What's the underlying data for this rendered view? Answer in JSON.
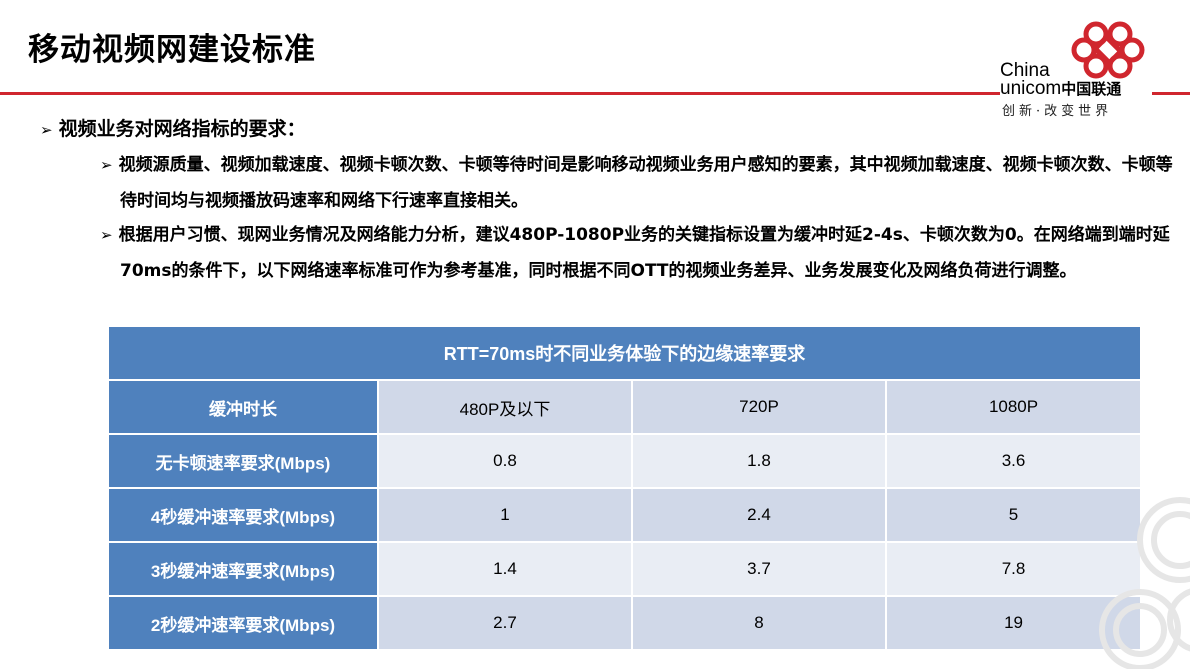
{
  "title": "移动视频网建设标准",
  "logo": {
    "line1": "China",
    "line2_en": "unicom",
    "line2_cn": "中国联通",
    "slogan": "创新·改变世界"
  },
  "section": {
    "heading": "视频业务对网络指标的要求：",
    "bullets": [
      "视频源质量、视频加载速度、视频卡顿次数、卡顿等待时间是影响移动视频业务用户感知的要素，其中视频加载速度、视频卡顿次数、卡顿等待时间均与视频播放码速率和网络下行速率直接相关。",
      "根据用户习惯、现网业务情况及网络能力分析，建议480P-1080P业务的关键指标设置为缓冲时延2-4s、卡顿次数为0。在网络端到端时延70ms的条件下，以下网络速率标准可作为参考基准，同时根据不同OTT的视频业务差异、业务发展变化及网络负荷进行调整。"
    ]
  },
  "table": {
    "caption": "RTT=70ms时不同业务体验下的边缘速率要求",
    "columns": [
      "缓冲时长",
      "480P及以下",
      "720P",
      "1080P"
    ],
    "rows": [
      {
        "label": "无卡顿速率要求(Mbps)",
        "values": [
          "0.8",
          "1.8",
          "3.6"
        ]
      },
      {
        "label": "4秒缓冲速率要求(Mbps)",
        "values": [
          "1",
          "2.4",
          "5"
        ]
      },
      {
        "label": "3秒缓冲速率要求(Mbps)",
        "values": [
          "1.4",
          "3.7",
          "7.8"
        ]
      },
      {
        "label": "2秒缓冲速率要求(Mbps)",
        "values": [
          "2.7",
          "8",
          "19"
        ]
      }
    ]
  },
  "colors": {
    "accent_red": "#d0262e",
    "table_header_blue": "#4f81bd",
    "cell_light": "#e9edf4",
    "cell_mid": "#d0d8e8"
  }
}
